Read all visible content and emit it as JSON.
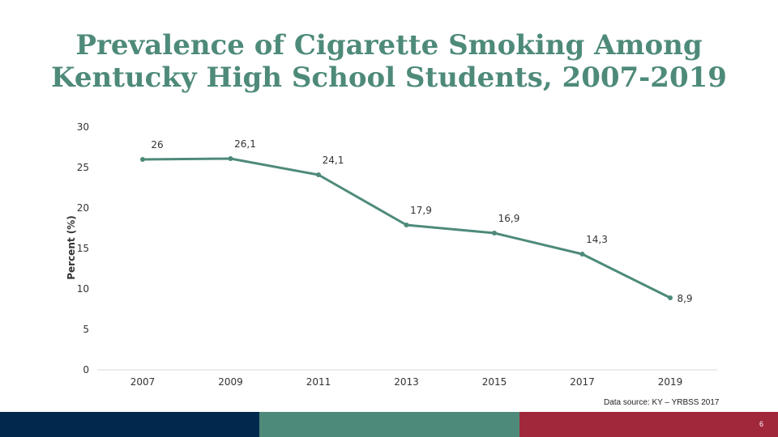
{
  "slide": {
    "title_line1": "Prevalence of Cigarette Smoking Among",
    "title_line2": "Kentucky High School Students, 2007-2019",
    "source": "Data source: KY – YRBSS 2017",
    "page_number": "6"
  },
  "colors": {
    "title": "#4e8a7a",
    "line": "#4e8a7a",
    "footer_navy": "#00294d",
    "footer_green": "#4e8a7a",
    "footer_red": "#a0283a"
  },
  "chart_data": {
    "type": "line",
    "title": "Prevalence of Cigarette Smoking Among Kentucky High School Students, 2007-2019",
    "xlabel": "",
    "ylabel": "Percent (%)",
    "ylim": [
      0,
      30
    ],
    "yticks": [
      0,
      5,
      10,
      15,
      20,
      25,
      30
    ],
    "grid": false,
    "legend": "none",
    "categories": [
      "2007",
      "2009",
      "2011",
      "2013",
      "2015",
      "2017",
      "2019"
    ],
    "values": [
      26,
      26.1,
      24.1,
      17.9,
      16.9,
      14.3,
      8.9
    ],
    "data_labels": [
      "26",
      "26,1",
      "24,1",
      "17,9",
      "16,9",
      "14,3",
      "8,9"
    ]
  }
}
